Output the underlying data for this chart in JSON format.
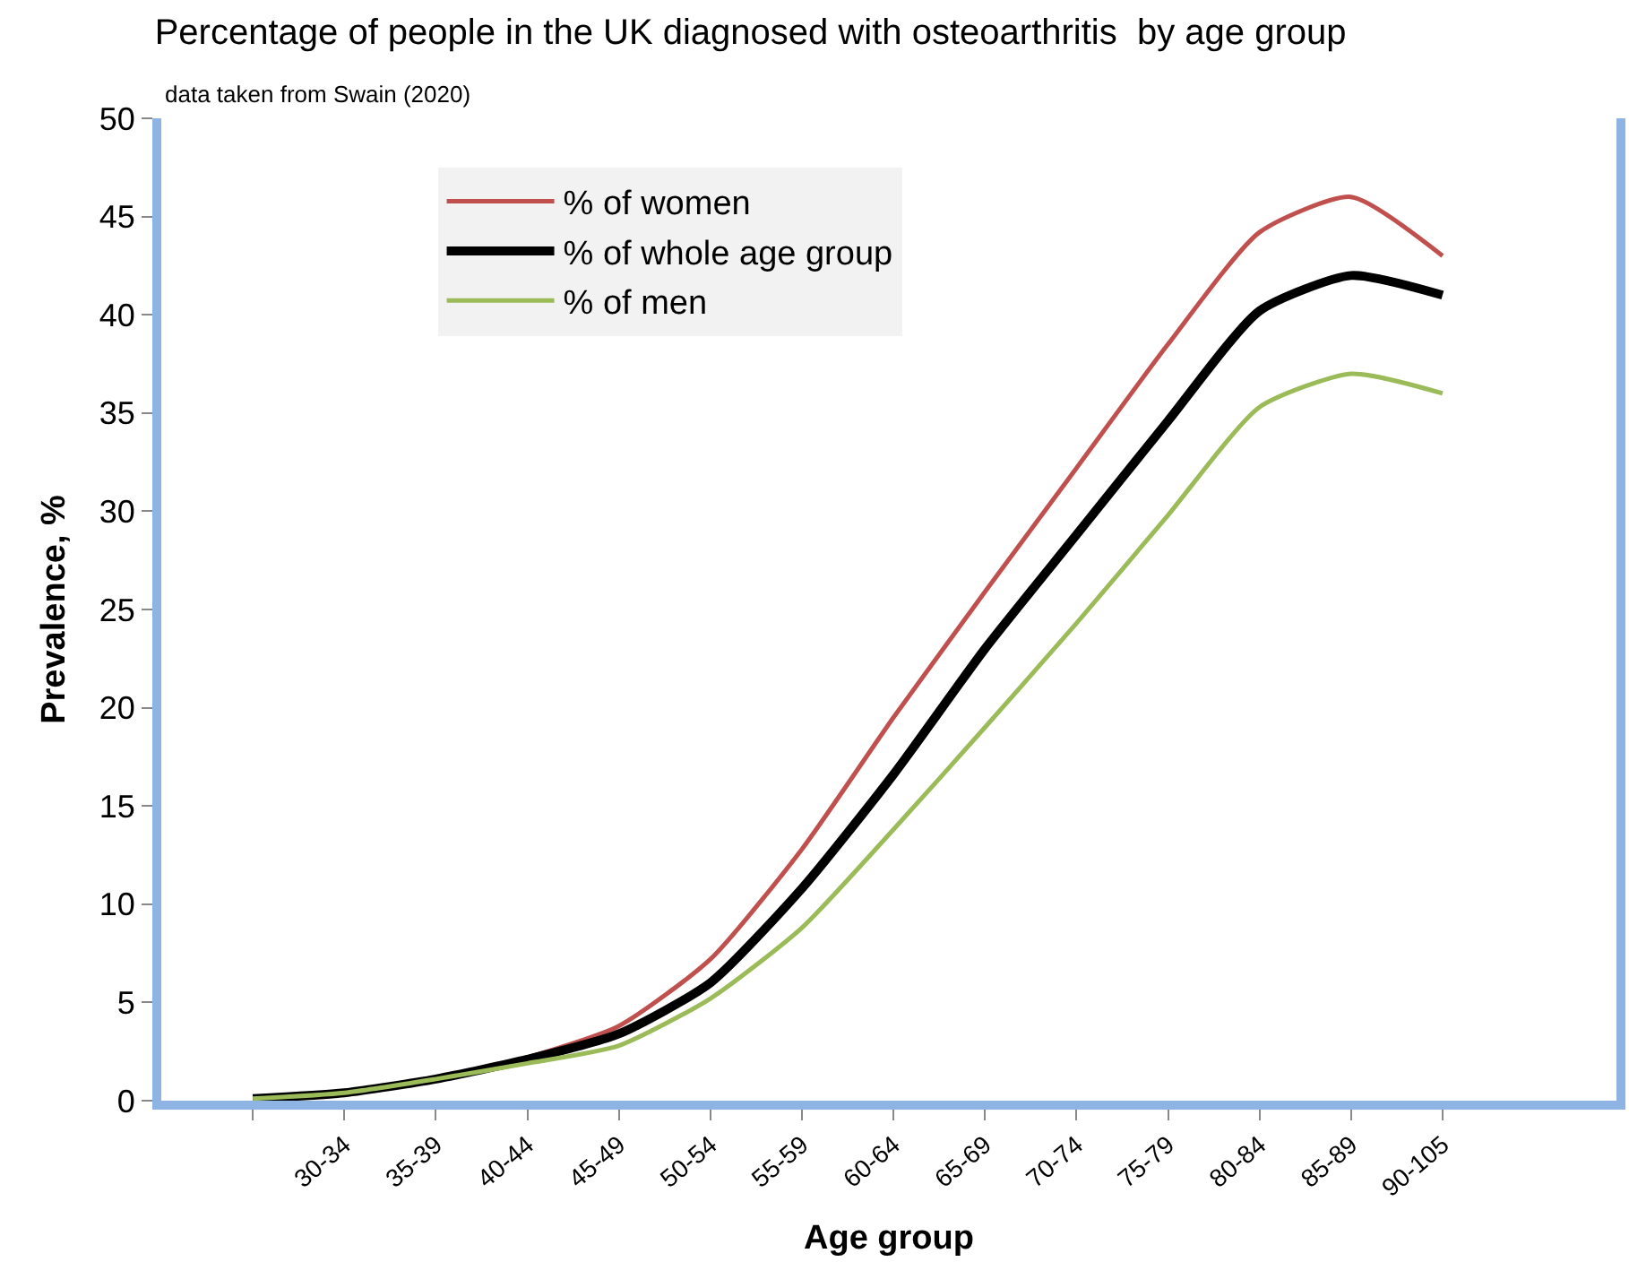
{
  "chart_data": {
    "type": "line",
    "title": "Percentage of people in the UK diagnosed with osteoarthritis  by age group",
    "subtitle": "data taken from Swain (2020)",
    "xlabel": "Age group",
    "ylabel": "Prevalence, %",
    "categories": [
      null,
      "30-34",
      "35-39",
      "40-44",
      "45-49",
      "50-54",
      "55-59",
      "60-64",
      "65-69",
      "70-74",
      "75-79",
      "80-84",
      "85-89",
      "90-105"
    ],
    "series": [
      {
        "name": "% of women",
        "color": "#c0504d",
        "values": [
          null,
          null,
          1.1,
          2.2,
          3.8,
          7.2,
          12.8,
          19.5,
          25.9,
          32.2,
          38.5,
          44.2,
          46,
          43
        ]
      },
      {
        "name": "% of whole age group",
        "color": "#000000",
        "values": [
          0.1,
          0.4,
          1.1,
          2.1,
          3.4,
          6.0,
          10.8,
          16.6,
          23,
          28.8,
          34.6,
          40.2,
          42,
          41
        ]
      },
      {
        "name": "% of men",
        "color": "#9bbb59",
        "values": [
          0.1,
          0.4,
          1.1,
          1.9,
          2.8,
          5.2,
          8.8,
          13.8,
          19,
          24.3,
          29.8,
          35.3,
          37,
          36
        ]
      }
    ],
    "ylim": [
      0,
      50
    ],
    "yticks": [
      0,
      5,
      10,
      15,
      20,
      25,
      30,
      35,
      40,
      45,
      50
    ],
    "legend": "top left",
    "marker": "none",
    "line_style": "solid"
  }
}
